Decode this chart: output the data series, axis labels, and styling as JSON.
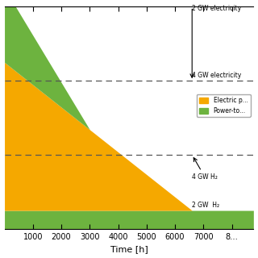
{
  "title": "",
  "xlabel": "Time [h]",
  "ylabel": "",
  "xlim": [
    0,
    8760
  ],
  "ylim": [
    0,
    6
  ],
  "orange_color": "#F5A800",
  "green_color": "#6DB33F",
  "white_color": "#FFFFFF",
  "background_color": "#FFFFFF",
  "dashed_line_y1": 4.0,
  "dashed_line_y2": 2.0,
  "total_height": 6.0,
  "bottom_green_height": 0.5,
  "orange_peak": 4.0,
  "orange_end_x": 6600,
  "green_top_peak": 2.0,
  "green_top_end_x": 3000,
  "legend_labels": [
    "Electric p...",
    "Power-to..."
  ],
  "legend_colors": [
    "#F5A800",
    "#6DB33F"
  ],
  "annot_2gw_elec_text": "2 GW electricity",
  "annot_4gw_elec_text": "4 GW electricity",
  "annot_4gw_h2_text": "4 GW H₂",
  "annot_2gw_h2_text": "2 GW  H₂",
  "fontsize_annot": 5.5,
  "fontsize_tick": 7,
  "fontsize_xlabel": 8,
  "fontsize_legend": 5.5,
  "x_ticks": [
    1000,
    2000,
    3000,
    4000,
    5000,
    6000,
    7000,
    8000
  ],
  "x_tick_labels": [
    "1000",
    "2000",
    "3000",
    "4000",
    "5000",
    "6000",
    "7000",
    "8…"
  ]
}
